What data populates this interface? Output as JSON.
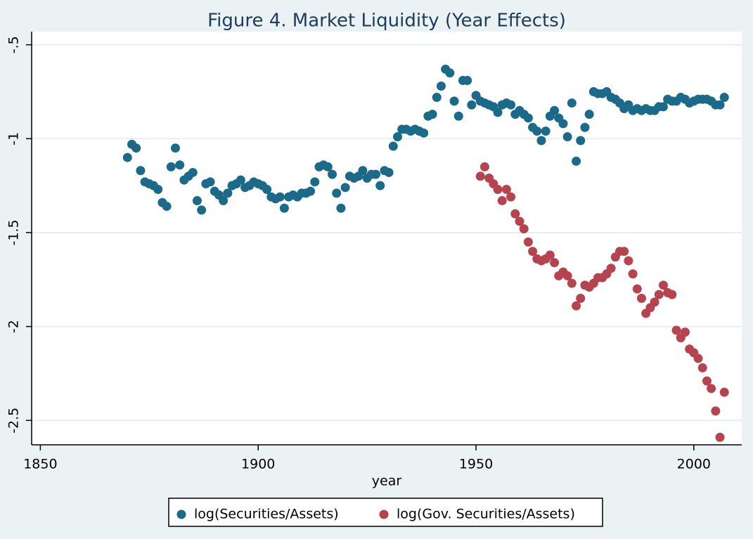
{
  "chart_data": {
    "type": "scatter",
    "title": "Figure 4. Market Liquidity (Year Effects)",
    "x_label": "year",
    "xlim": [
      1848,
      2011
    ],
    "xticks": [
      1850,
      1900,
      1950,
      2000
    ],
    "ylim": [
      -2.63,
      -0.43
    ],
    "yticks": [
      {
        "value": -0.5,
        "label": "-.5"
      },
      -1,
      -1.5,
      -2,
      -2.5
    ],
    "grid": true,
    "legend": "bottom",
    "series": [
      {
        "name": "log(Securities/Assets)",
        "color": "#1b6a8a",
        "x": [
          1870,
          1871,
          1872,
          1873,
          1874,
          1875,
          1876,
          1877,
          1878,
          1879,
          1880,
          1881,
          1882,
          1883,
          1884,
          1885,
          1886,
          1887,
          1888,
          1889,
          1890,
          1891,
          1892,
          1893,
          1894,
          1895,
          1896,
          1897,
          1898,
          1899,
          1900,
          1901,
          1902,
          1903,
          1904,
          1905,
          1906,
          1907,
          1908,
          1909,
          1910,
          1911,
          1912,
          1913,
          1914,
          1915,
          1916,
          1917,
          1918,
          1919,
          1920,
          1921,
          1922,
          1923,
          1924,
          1925,
          1926,
          1927,
          1928,
          1929,
          1930,
          1931,
          1932,
          1933,
          1934,
          1935,
          1936,
          1937,
          1938,
          1939,
          1940,
          1941,
          1942,
          1943,
          1944,
          1945,
          1946,
          1947,
          1948,
          1949,
          1950,
          1951,
          1952,
          1953,
          1954,
          1955,
          1956,
          1957,
          1958,
          1959,
          1960,
          1961,
          1962,
          1963,
          1964,
          1965,
          1966,
          1967,
          1968,
          1969,
          1970,
          1971,
          1972,
          1973,
          1974,
          1975,
          1976,
          1977,
          1978,
          1979,
          1980,
          1981,
          1982,
          1983,
          1984,
          1985,
          1986,
          1987,
          1988,
          1989,
          1990,
          1991,
          1992,
          1993,
          1994,
          1995,
          1996,
          1997,
          1998,
          1999,
          2000,
          2001,
          2002,
          2003,
          2004,
          2005,
          2006,
          2007
        ],
        "values": [
          -1.1,
          -1.03,
          -1.05,
          -1.17,
          -1.23,
          -1.24,
          -1.25,
          -1.27,
          -1.34,
          -1.36,
          -1.15,
          -1.05,
          -1.14,
          -1.22,
          -1.2,
          -1.18,
          -1.33,
          -1.38,
          -1.24,
          -1.23,
          -1.28,
          -1.3,
          -1.33,
          -1.29,
          -1.25,
          -1.24,
          -1.22,
          -1.26,
          -1.25,
          -1.23,
          -1.24,
          -1.25,
          -1.27,
          -1.31,
          -1.32,
          -1.31,
          -1.37,
          -1.31,
          -1.3,
          -1.31,
          -1.29,
          -1.29,
          -1.28,
          -1.23,
          -1.15,
          -1.14,
          -1.15,
          -1.19,
          -1.29,
          -1.37,
          -1.26,
          -1.2,
          -1.21,
          -1.2,
          -1.17,
          -1.21,
          -1.19,
          -1.19,
          -1.25,
          -1.17,
          -1.18,
          -1.04,
          -0.99,
          -0.95,
          -0.95,
          -0.96,
          -0.95,
          -0.96,
          -0.97,
          -0.88,
          -0.87,
          -0.78,
          -0.72,
          -0.63,
          -0.65,
          -0.8,
          -0.88,
          -0.69,
          -0.69,
          -0.82,
          -0.77,
          -0.8,
          -0.81,
          -0.82,
          -0.83,
          -0.86,
          -0.82,
          -0.81,
          -0.82,
          -0.87,
          -0.85,
          -0.87,
          -0.89,
          -0.94,
          -0.96,
          -1.01,
          -0.96,
          -0.88,
          -0.85,
          -0.89,
          -0.92,
          -0.99,
          -0.81,
          -1.12,
          -1.01,
          -0.94,
          -0.87,
          -0.75,
          -0.76,
          -0.76,
          -0.75,
          -0.78,
          -0.79,
          -0.81,
          -0.84,
          -0.82,
          -0.85,
          -0.84,
          -0.85,
          -0.84,
          -0.85,
          -0.85,
          -0.83,
          -0.83,
          -0.79,
          -0.8,
          -0.8,
          -0.78,
          -0.79,
          -0.81,
          -0.8,
          -0.79,
          -0.79,
          -0.79,
          -0.8,
          -0.82,
          -0.82,
          -0.78
        ]
      },
      {
        "name": "log(Gov. Securities/Assets)",
        "color": "#b5444f",
        "x": [
          1951,
          1952,
          1953,
          1954,
          1955,
          1956,
          1957,
          1958,
          1959,
          1960,
          1961,
          1962,
          1963,
          1964,
          1965,
          1966,
          1967,
          1968,
          1969,
          1970,
          1971,
          1972,
          1973,
          1974,
          1975,
          1976,
          1977,
          1978,
          1979,
          1980,
          1981,
          1982,
          1983,
          1984,
          1985,
          1986,
          1987,
          1988,
          1989,
          1990,
          1991,
          1992,
          1993,
          1994,
          1995,
          1996,
          1997,
          1998,
          1999,
          2000,
          2001,
          2002,
          2003,
          2004,
          2005,
          2006,
          2007
        ],
        "values": [
          -1.2,
          -1.15,
          -1.21,
          -1.24,
          -1.27,
          -1.33,
          -1.27,
          -1.31,
          -1.4,
          -1.44,
          -1.48,
          -1.55,
          -1.6,
          -1.64,
          -1.65,
          -1.64,
          -1.62,
          -1.66,
          -1.73,
          -1.71,
          -1.73,
          -1.77,
          -1.89,
          -1.85,
          -1.78,
          -1.79,
          -1.77,
          -1.74,
          -1.74,
          -1.72,
          -1.69,
          -1.63,
          -1.6,
          -1.6,
          -1.65,
          -1.72,
          -1.8,
          -1.85,
          -1.93,
          -1.9,
          -1.87,
          -1.83,
          -1.78,
          -1.82,
          -1.83,
          -2.02,
          -2.06,
          -2.03,
          -2.12,
          -2.14,
          -2.17,
          -2.22,
          -2.29,
          -2.33,
          -2.45,
          -2.59,
          -2.35
        ]
      }
    ]
  }
}
